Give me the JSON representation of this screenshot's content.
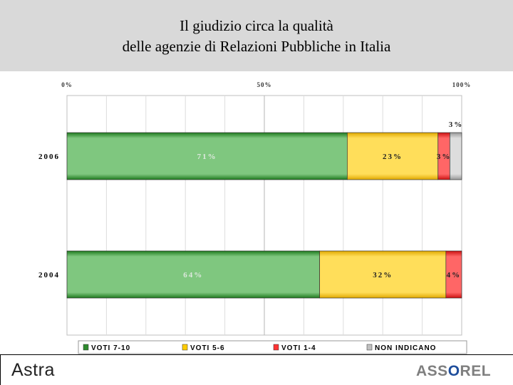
{
  "header": {
    "title_line1": "Il giudizio circa la qualità",
    "title_line2": "delle agenzie di Relazioni Pubbliche in Italia"
  },
  "chart_data": {
    "type": "bar",
    "orientation": "horizontal",
    "stacked": true,
    "x_ticks": [
      "0%",
      "50%",
      "100%"
    ],
    "xlim": [
      0,
      100
    ],
    "categories": [
      "2006",
      "2004"
    ],
    "series": [
      {
        "name": "VOTI 7-10",
        "color": "#2e8b2e",
        "values": [
          71,
          64
        ],
        "labels": [
          "71%",
          "64%"
        ]
      },
      {
        "name": "VOTI 5-6",
        "color": "#ffcc00",
        "values": [
          23,
          32
        ],
        "labels": [
          "23%",
          "32%"
        ]
      },
      {
        "name": "VOTI 1-4",
        "color": "#ff3333",
        "values": [
          3,
          4
        ],
        "labels": [
          "3%",
          "4%"
        ]
      },
      {
        "name": "NON INDICANO",
        "color": "#c0c0c0",
        "values": [
          3,
          0
        ],
        "labels": [
          "3%",
          ""
        ]
      }
    ],
    "grid": true,
    "legend_position": "bottom"
  },
  "footer": {
    "logo_left": "Astra",
    "logo_right_a": "ASS",
    "logo_right_o": "O",
    "logo_right_b": "REL"
  }
}
